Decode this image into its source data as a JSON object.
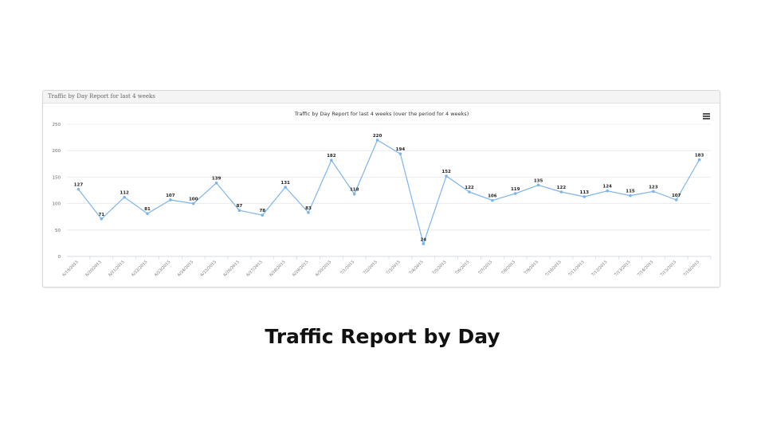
{
  "panel": {
    "header_title": "Traffic by Day Report for last 4 weeks"
  },
  "caption": "Traffic Report by Day",
  "menu": {
    "icon": "hamburger-menu-icon"
  },
  "colors": {
    "line": "#7cb5ec",
    "grid": "#e6e6e6",
    "label": "#222222",
    "axis_text": "#666666"
  },
  "chart_data": {
    "type": "line",
    "title": "Traffic by Day Report for last 4 weeks (over the period for 4 weeks)",
    "xlabel": "",
    "ylabel": "",
    "ylim": [
      0,
      250
    ],
    "yticks": [
      0,
      50,
      100,
      150,
      200,
      250
    ],
    "grid": true,
    "legend": "none",
    "categories": [
      "6/19/2015",
      "6/20/2015",
      "6/21/2015",
      "6/22/2015",
      "6/23/2015",
      "6/24/2015",
      "6/25/2015",
      "6/26/2015",
      "6/27/2015",
      "6/28/2015",
      "6/29/2015",
      "6/30/2015",
      "7/1/2015",
      "7/2/2015",
      "7/3/2015",
      "7/4/2015",
      "7/5/2015",
      "7/6/2015",
      "7/7/2015",
      "7/8/2015",
      "7/9/2015",
      "7/10/2015",
      "7/11/2015",
      "7/12/2015",
      "7/13/2015",
      "7/14/2015",
      "7/15/2015",
      "7/16/2015"
    ],
    "series": [
      {
        "values": [
          127,
          71,
          112,
          81,
          107,
          100,
          139,
          87,
          78,
          131,
          83,
          182,
          118,
          220,
          194,
          24,
          152,
          122,
          106,
          119,
          135,
          122,
          113,
          124,
          115,
          123,
          107,
          183
        ]
      }
    ]
  }
}
